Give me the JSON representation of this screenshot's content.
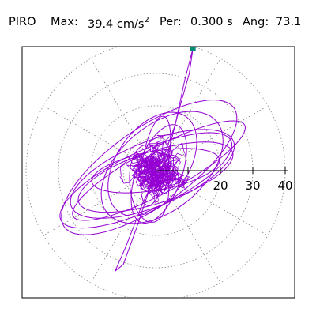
{
  "header": {
    "station": "PIRO",
    "max_label": "Max:",
    "max_value": "39.4 cm/s",
    "max_exp": "2",
    "per_label": "Per:",
    "per_value": "0.300 s",
    "ang_label": "Ang:",
    "ang_value": "73.1"
  },
  "chart_data": {
    "type": "polar-orbit",
    "title": "PIRO Max: 39.4 cm/s2 Per: 0.300 s Ang: 73.1",
    "units": "cm/s2",
    "max": 39.4,
    "period_s": 0.3,
    "angle_deg": 73.1,
    "r_ticks": [
      10,
      20,
      30,
      40
    ],
    "tick_labels": [
      "20",
      "30",
      "40"
    ],
    "r_max": 40,
    "spoke_step_deg": 30,
    "grid": true,
    "grid_style": "dotted",
    "peak_point": {
      "east": 11.5,
      "north": 37.7
    },
    "trace_color": "#9400d3",
    "marker_color": "#008b74",
    "axis_color": "#000000",
    "grid_color": "#888888",
    "orbit_loops": [
      {
        "center": [
          -1,
          -1
        ],
        "semi_major": 27,
        "semi_minor": 10,
        "angle_deg": 22
      },
      {
        "center": [
          1,
          0
        ],
        "semi_major": 30,
        "semi_minor": 7,
        "angle_deg": 28
      },
      {
        "center": [
          -2,
          1
        ],
        "semi_major": 32,
        "semi_minor": 12,
        "angle_deg": 35
      },
      {
        "center": [
          0,
          -2
        ],
        "semi_major": 25,
        "semi_minor": 8,
        "angle_deg": 18
      },
      {
        "center": [
          2,
          1
        ],
        "semi_major": 22,
        "semi_minor": 13,
        "angle_deg": 40
      },
      {
        "center": [
          -3,
          -3
        ],
        "semi_major": 29,
        "semi_minor": 9,
        "angle_deg": 25
      },
      {
        "center": [
          0,
          0
        ],
        "semi_major": 20,
        "semi_minor": 6,
        "angle_deg": 10
      },
      {
        "center": [
          -1,
          2
        ],
        "semi_major": 18,
        "semi_minor": 11,
        "angle_deg": 55
      },
      {
        "center": [
          1,
          -1
        ],
        "semi_major": 16,
        "semi_minor": 7,
        "angle_deg": 70
      },
      {
        "center": [
          -2,
          -4
        ],
        "semi_major": 12,
        "semi_minor": 6,
        "angle_deg": 95
      },
      {
        "center": [
          0,
          3
        ],
        "semi_major": 14,
        "semi_minor": 4,
        "angle_deg": 80
      }
    ]
  }
}
